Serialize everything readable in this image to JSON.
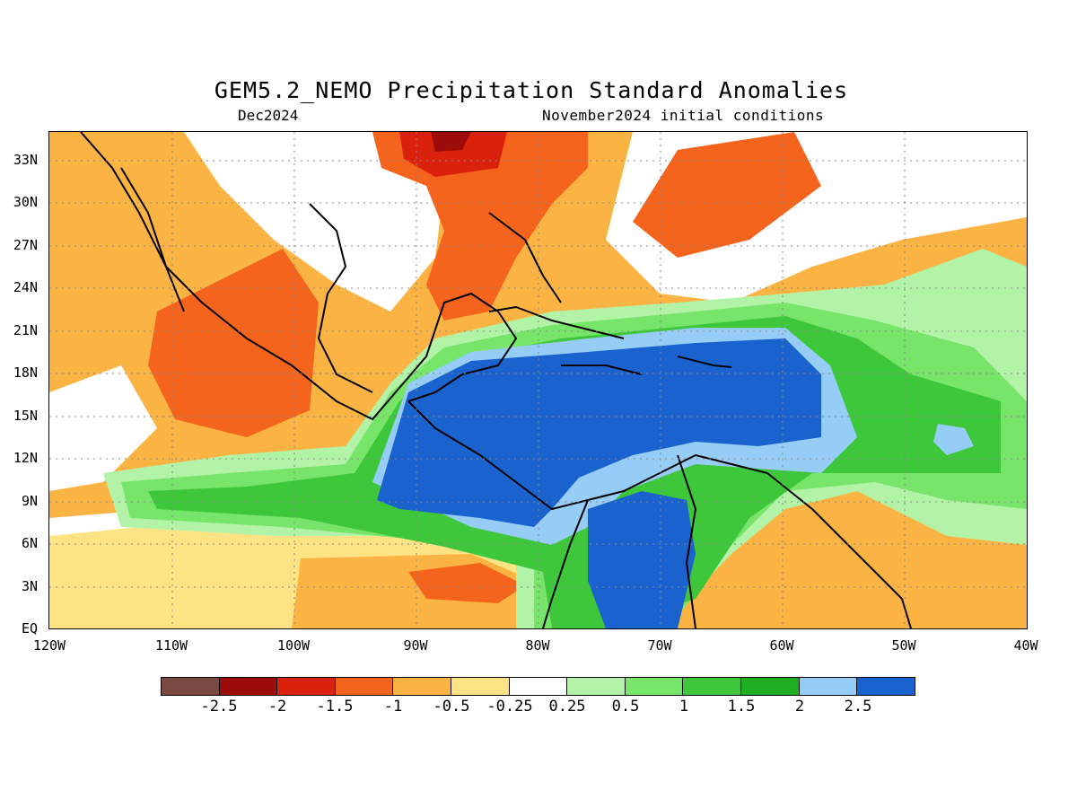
{
  "title": "GEM5.2_NEMO Precipitation Standard Anomalies",
  "period": "Dec2024",
  "initial_conditions": "November2024 initial conditions",
  "y_axis": {
    "ticks": [
      "33N",
      "30N",
      "27N",
      "24N",
      "21N",
      "18N",
      "15N",
      "12N",
      "9N",
      "6N",
      "3N",
      "EQ"
    ],
    "lat_values": [
      33,
      30,
      27,
      24,
      21,
      18,
      15,
      12,
      9,
      6,
      3,
      0
    ],
    "range": [
      0,
      35
    ]
  },
  "x_axis": {
    "ticks": [
      "120W",
      "110W",
      "100W",
      "90W",
      "80W",
      "70W",
      "60W",
      "50W",
      "40W"
    ],
    "lon_values": [
      -120,
      -110,
      -100,
      -90,
      -80,
      -70,
      -60,
      -50,
      -40
    ],
    "range": [
      -120,
      -40
    ]
  },
  "grid": true,
  "colorbar": {
    "labels": [
      "-2.5",
      "-2",
      "-1.5",
      "-1",
      "-0.5",
      "-0.25",
      "0.25",
      "0.5",
      "1",
      "1.5",
      "2",
      "2.5"
    ],
    "colors": [
      "#7a4a42",
      "#9e0b0b",
      "#d9210b",
      "#f5641c",
      "#fbb444",
      "#fde383",
      "#ffffff",
      "#b3f3a8",
      "#77e46a",
      "#3ec73a",
      "#1fae22",
      "#96cdf6",
      "#1a62cd"
    ]
  },
  "map_colors": {
    "dry_strong": "#d9210b",
    "dry_moderate": "#f5641c",
    "dry_light": "#fbb444",
    "dry_faint": "#fde383",
    "wet_faint": "#b3f3a8",
    "wet_light": "#77e46a",
    "wet_moderate": "#3ec73a",
    "wet_strong": "#1fae22",
    "wet_very": "#96cdf6",
    "wet_extreme": "#1a62cd",
    "coast": "#000000"
  }
}
